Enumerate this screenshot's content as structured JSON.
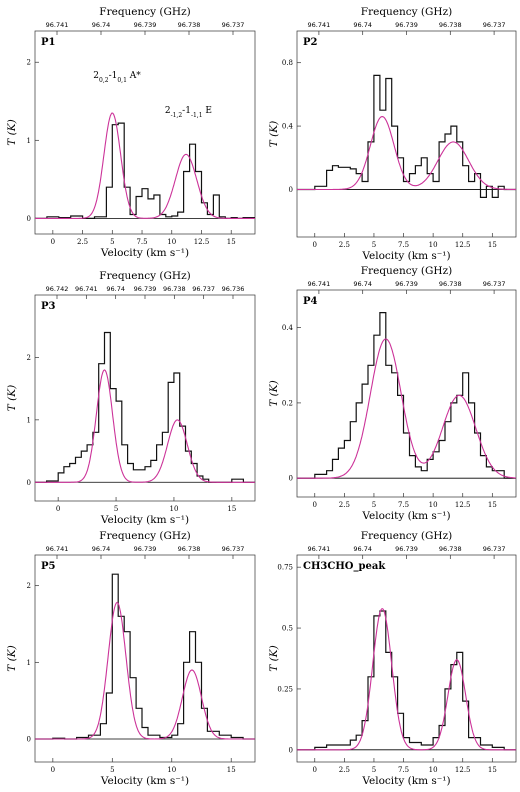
{
  "figure": {
    "freq_axis_label": "Frequency (GHz)",
    "x_axis_label": "Velocity (km s⁻¹)",
    "y_axis_label": "T (K)"
  },
  "colors": {
    "observed": "#111111",
    "model": "#cc3399"
  },
  "chart_data": [
    {
      "id": "P1",
      "type": "line",
      "title": "P1",
      "xlim": [
        -1.5,
        17
      ],
      "ylim": [
        -0.2,
        2.4
      ],
      "xticks": [
        "0",
        "2.5",
        "5",
        "7.5",
        "10",
        "12.5",
        "15"
      ],
      "yticks": [
        0,
        1,
        2
      ],
      "freq_ticks": [
        "96.741",
        "96.74",
        "96.739",
        "96.738",
        "96.737"
      ],
      "annotations": [
        {
          "text": "2",
          "sub": "0,2",
          "mid": "-1",
          "sub2": "0,1",
          "tail": " A*",
          "x": 5.4,
          "y": 1.8
        },
        {
          "text": "2",
          "sub": "-1,2",
          "mid": "-1",
          "sub2": "-1,1",
          "tail": " E",
          "x": 11.4,
          "y": 1.35
        }
      ],
      "series": [
        {
          "kind": "observed",
          "x": [
            -1.5,
            -0.5,
            0.5,
            1.5,
            2.5,
            3.5,
            4.5,
            5,
            5.5,
            6,
            6.5,
            7,
            7.5,
            8,
            8.5,
            9,
            9.5,
            10,
            10.5,
            11,
            11.5,
            12,
            12.5,
            13,
            13.5,
            14,
            14.5,
            15,
            15.5,
            16,
            17
          ],
          "y": [
            0,
            0.02,
            0.01,
            0.03,
            0.0,
            0.02,
            0.4,
            1.2,
            1.22,
            0.4,
            0.05,
            0.28,
            0.38,
            0.25,
            0.3,
            0.05,
            0.02,
            0.03,
            0.08,
            0.6,
            0.95,
            0.6,
            0.2,
            0.05,
            0.3,
            0.02,
            0.0,
            0.01,
            0.0,
            0.01,
            0.0
          ]
        },
        {
          "kind": "model",
          "peaks": [
            [
              5.0,
              1.35,
              0.7
            ],
            [
              11.2,
              0.82,
              0.9
            ]
          ]
        }
      ]
    },
    {
      "id": "P2",
      "type": "line",
      "title": "P2",
      "xlim": [
        -1.5,
        17
      ],
      "ylim": [
        -0.3,
        1.0
      ],
      "xticks": [
        "0",
        "2.5",
        "5",
        "7.5",
        "10",
        "12.5",
        "15"
      ],
      "yticks": [
        0,
        0.4,
        0.8
      ],
      "freq_ticks": [
        "96.741",
        "96.74",
        "96.739",
        "96.738",
        "96.737"
      ],
      "series": [
        {
          "kind": "observed",
          "x": [
            -1.5,
            0,
            1,
            1.5,
            2,
            2.5,
            3,
            3.5,
            4,
            4.5,
            5,
            5.5,
            6,
            6.5,
            7,
            7.5,
            8,
            8.5,
            9,
            9.5,
            10,
            10.5,
            11,
            11.5,
            12,
            12.5,
            13,
            13.5,
            14,
            14.5,
            15,
            15.5,
            16,
            17
          ],
          "y": [
            0.0,
            0.02,
            0.12,
            0.15,
            0.14,
            0.14,
            0.13,
            0.1,
            0.05,
            0.3,
            0.72,
            0.5,
            0.7,
            0.4,
            0.2,
            0.05,
            0.1,
            0.15,
            0.2,
            0.1,
            0.05,
            0.3,
            0.35,
            0.4,
            0.3,
            0.15,
            0.05,
            0.1,
            -0.05,
            0.02,
            -0.05,
            0.02,
            0.0,
            0.0
          ]
        },
        {
          "kind": "model",
          "peaks": [
            [
              5.7,
              0.46,
              1.0
            ],
            [
              11.7,
              0.3,
              1.3
            ]
          ]
        }
      ]
    },
    {
      "id": "P3",
      "type": "line",
      "title": "P3",
      "xlim": [
        -2,
        17
      ],
      "ylim": [
        -0.3,
        3.0
      ],
      "xticks": [
        "0",
        "5",
        "10",
        "15"
      ],
      "yticks": [
        0,
        1,
        2
      ],
      "freq_ticks": [
        "96.742",
        "96.741",
        "96.74",
        "96.739",
        "96.738",
        "96.737",
        "96.736"
      ],
      "series": [
        {
          "kind": "observed",
          "x": [
            -2,
            -1,
            0,
            0.5,
            1,
            1.5,
            2,
            2.5,
            3,
            3.5,
            4,
            4.5,
            5,
            5.5,
            6,
            6.5,
            7,
            7.5,
            8,
            8.5,
            9,
            9.5,
            10,
            10.5,
            11,
            11.5,
            12,
            12.5,
            13,
            14,
            15,
            16,
            17
          ],
          "y": [
            0.0,
            0.02,
            0.15,
            0.25,
            0.3,
            0.4,
            0.5,
            0.6,
            0.8,
            1.9,
            2.4,
            1.5,
            1.3,
            0.6,
            0.3,
            0.2,
            0.2,
            0.25,
            0.35,
            0.6,
            0.8,
            1.6,
            1.75,
            0.9,
            0.5,
            0.3,
            0.1,
            0.05,
            0.0,
            0.0,
            0.05,
            0.0,
            0.0
          ]
        },
        {
          "kind": "model",
          "peaks": [
            [
              4.0,
              1.8,
              0.7
            ],
            [
              10.3,
              1.0,
              0.85
            ]
          ]
        }
      ]
    },
    {
      "id": "P4",
      "type": "line",
      "title": "P4",
      "xlim": [
        -1.5,
        17
      ],
      "ylim": [
        -0.05,
        0.5
      ],
      "xticks": [
        "0",
        "2.5",
        "5",
        "7.5",
        "10",
        "12.5",
        "15"
      ],
      "yticks": [
        0,
        0.2,
        0.4
      ],
      "freq_ticks": [
        "96.741",
        "96.74",
        "96.739",
        "96.738",
        "96.737"
      ],
      "series": [
        {
          "kind": "observed",
          "x": [
            -1.5,
            0,
            1,
            1.5,
            2,
            2.5,
            3,
            3.5,
            4,
            4.5,
            5,
            5.5,
            6,
            6.5,
            7,
            7.5,
            8,
            8.5,
            9,
            9.5,
            10,
            10.5,
            11,
            11.5,
            12,
            12.5,
            13,
            13.5,
            14,
            14.5,
            15,
            16,
            17
          ],
          "y": [
            0.0,
            0.01,
            0.02,
            0.05,
            0.08,
            0.1,
            0.15,
            0.2,
            0.25,
            0.3,
            0.38,
            0.44,
            0.3,
            0.28,
            0.22,
            0.12,
            0.06,
            0.03,
            0.02,
            0.05,
            0.07,
            0.1,
            0.15,
            0.2,
            0.22,
            0.28,
            0.2,
            0.12,
            0.06,
            0.03,
            0.02,
            0.0,
            0.0
          ]
        },
        {
          "kind": "model",
          "peaks": [
            [
              6.0,
              0.37,
              1.3
            ],
            [
              12.2,
              0.22,
              1.4
            ]
          ]
        }
      ]
    },
    {
      "id": "P5",
      "type": "line",
      "title": "P5",
      "xlim": [
        -1.5,
        17
      ],
      "ylim": [
        -0.3,
        2.4
      ],
      "xticks": [
        "0",
        "5",
        "10",
        "15"
      ],
      "yticks": [
        0,
        1,
        2
      ],
      "freq_ticks": [
        "96.741",
        "96.74",
        "96.739",
        "96.738",
        "96.737"
      ],
      "series": [
        {
          "kind": "observed",
          "x": [
            -1.5,
            0,
            1,
            2,
            3,
            4,
            4.5,
            5,
            5.5,
            6,
            6.5,
            7,
            7.5,
            8,
            9,
            10,
            10.5,
            11,
            11.5,
            12,
            12.5,
            13,
            14,
            15,
            16,
            17
          ],
          "y": [
            0.0,
            0.01,
            0.0,
            0.02,
            0.05,
            0.2,
            0.6,
            2.15,
            1.6,
            1.4,
            0.8,
            0.4,
            0.15,
            0.05,
            0.02,
            0.05,
            0.2,
            1.0,
            1.4,
            1.0,
            0.4,
            0.1,
            0.05,
            0.02,
            0.0,
            0.0
          ]
        },
        {
          "kind": "model",
          "peaks": [
            [
              5.4,
              1.78,
              0.75
            ],
            [
              11.7,
              0.9,
              0.8
            ]
          ]
        }
      ]
    },
    {
      "id": "CH3CHO_peak",
      "type": "line",
      "title": "CH3CHO_peak",
      "xlim": [
        -1.5,
        17
      ],
      "ylim": [
        -0.05,
        0.8
      ],
      "xticks": [
        "0",
        "2.5",
        "5",
        "7.5",
        "10",
        "12.5",
        "15"
      ],
      "yticks": [
        0,
        0.25,
        0.5,
        0.75
      ],
      "freq_ticks": [
        "96.741",
        "96.74",
        "96.739",
        "96.738",
        "96.737"
      ],
      "series": [
        {
          "kind": "observed",
          "x": [
            -1.5,
            0,
            1,
            2,
            3,
            3.5,
            4,
            4.5,
            5,
            5.5,
            6,
            6.5,
            7,
            7.5,
            8,
            9,
            10,
            10.5,
            11,
            11.5,
            12,
            12.5,
            13,
            14,
            15,
            16,
            17
          ],
          "y": [
            0.0,
            0.01,
            0.02,
            0.02,
            0.04,
            0.06,
            0.12,
            0.3,
            0.55,
            0.57,
            0.4,
            0.3,
            0.15,
            0.05,
            0.03,
            0.02,
            0.05,
            0.1,
            0.25,
            0.35,
            0.4,
            0.2,
            0.05,
            0.02,
            0.01,
            0.0,
            0.0
          ]
        },
        {
          "kind": "model",
          "peaks": [
            [
              5.7,
              0.58,
              0.8
            ],
            [
              12.0,
              0.37,
              0.75
            ]
          ]
        }
      ]
    }
  ]
}
